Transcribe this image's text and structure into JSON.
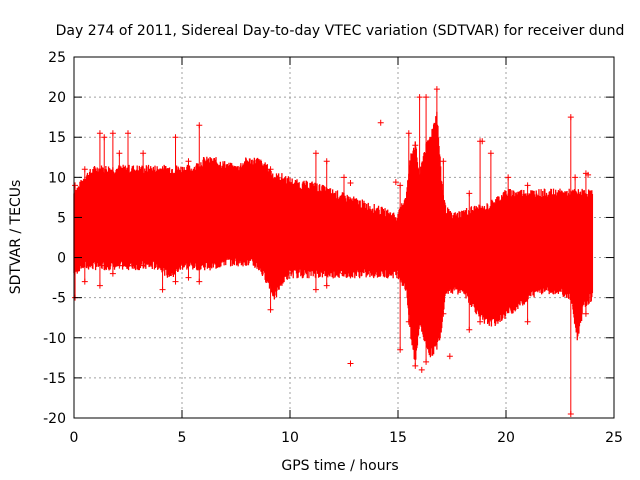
{
  "chart_data": {
    "type": "scatter",
    "title": "Day 274 of 2011, Sidereal Day-to-day VTEC variation (SDTVAR) for receiver dund",
    "xlabel": "GPS time / hours",
    "ylabel": "SDTVAR / TECUs",
    "xlim": [
      0,
      25
    ],
    "ylim": [
      -20,
      25
    ],
    "xticks": [
      0,
      5,
      10,
      15,
      20,
      25
    ],
    "yticks": [
      -20,
      -15,
      -10,
      -5,
      0,
      5,
      10,
      15,
      20,
      25
    ],
    "grid": true,
    "series_color": "#ff0000",
    "series": [
      {
        "name": "SDTVAR",
        "envelope": {
          "x": [
            0,
            0.3,
            0.5,
            1.0,
            1.3,
            1.8,
            2.5,
            3.0,
            3.5,
            4.0,
            4.3,
            4.6,
            5.0,
            5.5,
            6.0,
            6.5,
            7.0,
            7.5,
            8.0,
            8.5,
            9.0,
            9.3,
            9.6,
            10.0,
            10.5,
            11.0,
            11.5,
            12.0,
            12.5,
            13.0,
            13.5,
            14.0,
            14.5,
            15.0,
            15.4,
            15.6,
            15.8,
            16.0,
            16.2,
            16.5,
            16.8,
            17.0,
            17.2,
            17.5,
            18.0,
            18.5,
            19.0,
            19.5,
            20.0,
            20.5,
            21.0,
            21.5,
            22.0,
            22.5,
            23.0,
            23.3,
            23.6,
            23.9,
            24.0
          ],
          "upper": [
            8,
            9,
            10,
            11,
            11,
            11,
            11,
            11,
            11,
            11,
            11,
            11,
            11,
            11,
            12,
            12,
            11.5,
            11,
            12,
            12,
            11,
            10,
            10,
            9.5,
            9,
            9,
            8.5,
            8,
            7.5,
            7,
            6.5,
            6,
            5.5,
            5,
            8,
            13,
            14,
            10,
            13,
            15,
            18,
            10,
            6,
            5,
            5.5,
            6,
            6,
            7,
            8,
            8,
            8,
            8,
            8,
            8,
            8,
            8,
            8,
            8,
            8
          ],
          "lower": [
            -2,
            -1,
            -1,
            -1,
            -1,
            -1,
            -1,
            -1,
            -1,
            -1,
            -2,
            -2,
            -1,
            -1,
            -1,
            -1,
            -0.5,
            -0.5,
            -0.5,
            -1,
            -3,
            -5,
            -3,
            -2,
            -2,
            -2,
            -2,
            -2,
            -2,
            -2,
            -2,
            -2,
            -2,
            -2,
            -4,
            -10,
            -13,
            -8,
            -10,
            -12,
            -11,
            -9,
            -4,
            -4,
            -4,
            -6,
            -8,
            -8,
            -7,
            -6,
            -5,
            -4,
            -4,
            -4,
            -5,
            -10,
            -6,
            -5,
            -5
          ]
        },
        "spikes": [
          {
            "x": 0.05,
            "low": -5,
            "high": 9
          },
          {
            "x": 0.5,
            "low": -3,
            "high": 11
          },
          {
            "x": 1.2,
            "low": -3.5,
            "high": 15.5
          },
          {
            "x": 1.4,
            "low": -1,
            "high": 15
          },
          {
            "x": 1.8,
            "low": -2,
            "high": 15.5
          },
          {
            "x": 2.1,
            "low": -1,
            "high": 13
          },
          {
            "x": 2.5,
            "low": -1,
            "high": 15.5
          },
          {
            "x": 3.2,
            "low": -1,
            "high": 13
          },
          {
            "x": 4.1,
            "low": -4,
            "high": 11
          },
          {
            "x": 4.7,
            "low": -3,
            "high": 15
          },
          {
            "x": 5.3,
            "low": -2.5,
            "high": 12
          },
          {
            "x": 5.8,
            "low": -3,
            "high": 16.5
          },
          {
            "x": 9.1,
            "low": -6.5,
            "high": 11
          },
          {
            "x": 11.2,
            "low": -4,
            "high": 13
          },
          {
            "x": 11.7,
            "low": -3.5,
            "high": 12
          },
          {
            "x": 12.5,
            "low": -2,
            "high": 10
          },
          {
            "x": 15.1,
            "low": -11.5,
            "high": 9
          },
          {
            "x": 15.5,
            "low": -8,
            "high": 15.5
          },
          {
            "x": 15.8,
            "low": -13.5,
            "high": 14
          },
          {
            "x": 16.0,
            "low": -8,
            "high": 20
          },
          {
            "x": 16.3,
            "low": -13,
            "high": 20
          },
          {
            "x": 16.6,
            "low": -11,
            "high": 14
          },
          {
            "x": 16.8,
            "low": -10,
            "high": 21
          },
          {
            "x": 17.1,
            "low": -7,
            "high": 12
          },
          {
            "x": 18.3,
            "low": -9,
            "high": 8
          },
          {
            "x": 18.8,
            "low": -8,
            "high": 14.5
          },
          {
            "x": 19.3,
            "low": -7,
            "high": 13
          },
          {
            "x": 20.1,
            "low": -5,
            "high": 10
          },
          {
            "x": 21.0,
            "low": -8,
            "high": 9
          },
          {
            "x": 23.0,
            "low": -19.5,
            "high": 17.5
          },
          {
            "x": 23.2,
            "low": -6,
            "high": 10
          },
          {
            "x": 23.7,
            "low": -7,
            "high": 10.5
          }
        ],
        "outliers": [
          {
            "x": 12.8,
            "y": -13.2
          },
          {
            "x": 12.8,
            "y": 9.3
          },
          {
            "x": 14.2,
            "y": 16.8
          },
          {
            "x": 14.9,
            "y": 9.4
          },
          {
            "x": 16.1,
            "y": -14
          },
          {
            "x": 17.4,
            "y": -12.3
          },
          {
            "x": 18.9,
            "y": 14.5
          },
          {
            "x": 23.8,
            "y": 10.3
          }
        ]
      }
    ]
  }
}
